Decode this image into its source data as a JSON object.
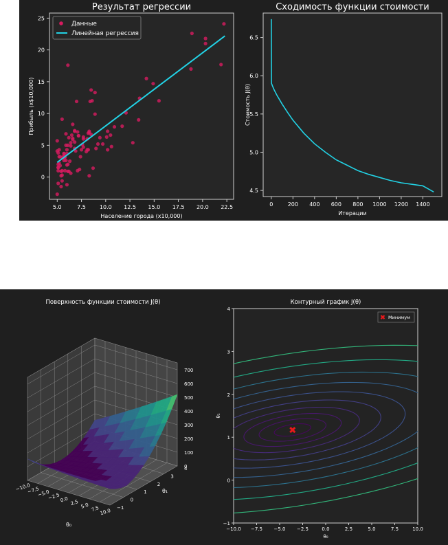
{
  "chart_data": [
    {
      "type": "scatter",
      "title": "Результат регрессии",
      "xlabel": "Население города (x10,000)",
      "ylabel": "Прибыль (x$10,000)",
      "xlim": [
        4.2,
        23.2
      ],
      "ylim": [
        -3.5,
        25.8
      ],
      "xticks": [
        "5.0",
        "7.5",
        "10.0",
        "12.5",
        "15.0",
        "17.5",
        "20.0",
        "22.5"
      ],
      "yticks": [
        "0",
        "5",
        "10",
        "15",
        "20",
        "25"
      ],
      "legend": [
        "Данные",
        "Линейная регрессия"
      ],
      "legend_position": "top-left",
      "colors": {
        "points": "#d81b60",
        "line": "#22d3e6"
      },
      "series": [
        {
          "name": "Данные",
          "kind": "scatter",
          "points": [
            [
              6.1,
              17.6
            ],
            [
              5.5,
              9.1
            ],
            [
              8.5,
              13.7
            ],
            [
              7.0,
              11.9
            ],
            [
              5.9,
              6.8
            ],
            [
              8.4,
              11.9
            ],
            [
              7.5,
              4.3
            ],
            [
              8.6,
              12.0
            ],
            [
              6.5,
              6.6
            ],
            [
              5.1,
              3.8
            ],
            [
              5.7,
              3.3
            ],
            [
              14.2,
              15.5
            ],
            [
              5.7,
              3.3
            ],
            [
              6.1,
              5.0
            ],
            [
              5.5,
              3.1
            ],
            [
              5.7,
              3.7
            ],
            [
              10.2,
              4.3
            ],
            [
              5.5,
              0.3
            ],
            [
              5.1,
              -1.0
            ],
            [
              5.1,
              1.5
            ],
            [
              5.4,
              -1.5
            ],
            [
              5.0,
              4.1
            ],
            [
              5.2,
              4.3
            ],
            [
              5.7,
              3.0
            ],
            [
              6.4,
              5.4
            ],
            [
              6.1,
              0.9
            ],
            [
              5.8,
              1.0
            ],
            [
              6.6,
              8.3
            ],
            [
              7.1,
              1.0
            ],
            [
              6.0,
              3.7
            ],
            [
              7.7,
              4.7
            ],
            [
              6.0,
              -1.2
            ],
            [
              5.3,
              3.2
            ],
            [
              5.0,
              -2.7
            ],
            [
              5.5,
              -0.6
            ],
            [
              5.0,
              5.7
            ],
            [
              6.8,
              7.3
            ],
            [
              7.2,
              6.5
            ],
            [
              6.2,
              0.9
            ],
            [
              5.4,
              0.2
            ],
            [
              8.3,
              7.0
            ],
            [
              6.1,
              2.0
            ],
            [
              10.1,
              6.3
            ],
            [
              5.1,
              1.0
            ],
            [
              6.8,
              5.5
            ],
            [
              10.5,
              6.6
            ],
            [
              15.5,
              12.0
            ],
            [
              20.3,
              21.8
            ],
            [
              13.4,
              9.0
            ],
            [
              5.4,
              0.9
            ],
            [
              7.1,
              7.1
            ],
            [
              5.2,
              2.2
            ],
            [
              6.6,
              5.9
            ],
            [
              6.4,
              0.6
            ],
            [
              12.8,
              5.4
            ],
            [
              5.2,
              3.2
            ],
            [
              9.2,
              5.2
            ],
            [
              6.4,
              4.9
            ],
            [
              6.0,
              1.9
            ],
            [
              8.9,
              9.9
            ],
            [
              6.8,
              7.2
            ],
            [
              5.9,
              5.0
            ],
            [
              5.7,
              2.6
            ],
            [
              20.3,
              21.0
            ],
            [
              21.9,
              17.7
            ],
            [
              8.9,
              13.3
            ],
            [
              9.7,
              5.2
            ],
            [
              6.0,
              4.3
            ],
            [
              9.0,
              4.5
            ],
            [
              5.1,
              2.0
            ],
            [
              6.2,
              6.2
            ],
            [
              9.4,
              6.2
            ],
            [
              5.7,
              3.7
            ],
            [
              8.1,
              4.3
            ],
            [
              7.6,
              5.1
            ],
            [
              8.5,
              6.7
            ],
            [
              5.5,
              1.0
            ],
            [
              6.3,
              2.5
            ],
            [
              8.2,
              6.9
            ],
            [
              5.9,
              2.6
            ],
            [
              8.2,
              4.3
            ],
            [
              8.7,
              1.4
            ],
            [
              10.9,
              7.9
            ],
            [
              6.8,
              4.5
            ],
            [
              7.2,
              6.5
            ],
            [
              8.3,
              0.2
            ],
            [
              7.7,
              6.0
            ],
            [
              7.7,
              6.3
            ],
            [
              8.3,
              7.2
            ],
            [
              11.7,
              8.0
            ],
            [
              5.3,
              1.8
            ],
            [
              8.0,
              4.0
            ],
            [
              18.9,
              22.6
            ],
            [
              22.2,
              24.1
            ],
            [
              7.4,
              3.2
            ],
            [
              10.2,
              7.2
            ],
            [
              12.1,
              10.1
            ],
            [
              14.9,
              14.7
            ],
            [
              18.8,
              17.0
            ],
            [
              13.5,
              12.4
            ],
            [
              5.1,
              1.5
            ],
            [
              6.9,
              4.1
            ],
            [
              5.8,
              3.1
            ],
            [
              7.3,
              1.2
            ],
            [
              6.6,
              6.1
            ],
            [
              8.1,
              6.0
            ],
            [
              10.6,
              4.8
            ]
          ]
        },
        {
          "name": "Линейная регрессия",
          "kind": "line",
          "x": [
            5.0,
            22.3
          ],
          "y": [
            2.3,
            22.2
          ]
        }
      ]
    },
    {
      "type": "line",
      "title": "Сходимость функции стоимости",
      "xlabel": "Итерации",
      "ylabel": "Стоимость J(θ)",
      "xlim": [
        -75,
        1575
      ],
      "ylim": [
        4.42,
        6.82
      ],
      "xticks": [
        "0",
        "200",
        "400",
        "600",
        "800",
        "1000",
        "1200",
        "1400"
      ],
      "yticks": [
        "4.5",
        "5.0",
        "5.5",
        "6.0",
        "6.5"
      ],
      "colors": {
        "line": "#22d3e6"
      },
      "series": [
        {
          "name": "J",
          "x": [
            0,
            1,
            2,
            5,
            10,
            25,
            50,
            100,
            150,
            200,
            300,
            400,
            500,
            600,
            700,
            800,
            900,
            1000,
            1100,
            1200,
            1300,
            1400,
            1500
          ],
          "y": [
            6.74,
            5.93,
            5.9,
            5.89,
            5.87,
            5.82,
            5.75,
            5.63,
            5.52,
            5.42,
            5.25,
            5.11,
            5.0,
            4.9,
            4.83,
            4.76,
            4.71,
            4.67,
            4.63,
            4.6,
            4.58,
            4.56,
            4.48
          ]
        }
      ]
    },
    {
      "type": "surface",
      "title": "Поверхность функции стоимости J(θ)",
      "xlabel": "θ₀",
      "ylabel": "θ₁",
      "xticks": [
        "−10.0",
        "−7.5",
        "−5.0",
        "−2.5",
        "0.0",
        "2.5",
        "5.0",
        "7.5",
        "10.0"
      ],
      "yticks": [
        "−1",
        "0",
        "1",
        "2",
        "3",
        "4"
      ],
      "zticks": [
        "0",
        "100",
        "200",
        "300",
        "400",
        "500",
        "600",
        "700"
      ],
      "zlim": [
        0,
        700
      ],
      "colormap": "viridis",
      "colors": {
        "low": "#440154",
        "mid": "#21918c",
        "high": "#fde725"
      }
    },
    {
      "type": "contour",
      "title": "Контурный график J(θ)",
      "xlabel": "θ₀",
      "ylabel": "θ₁",
      "xlim": [
        -10,
        10
      ],
      "ylim": [
        -1,
        4
      ],
      "xticks": [
        "−10.0",
        "−7.5",
        "−5.0",
        "−2.5",
        "0.0",
        "2.5",
        "5.0",
        "7.5",
        "10.0"
      ],
      "yticks": [
        "−1",
        "0",
        "1",
        "2",
        "3",
        "4"
      ],
      "legend": [
        "Минимум"
      ],
      "legend_position": "top-right",
      "minimum": {
        "x": -3.6,
        "y": 1.17
      },
      "colors": {
        "marker": "#e8191b"
      }
    }
  ]
}
